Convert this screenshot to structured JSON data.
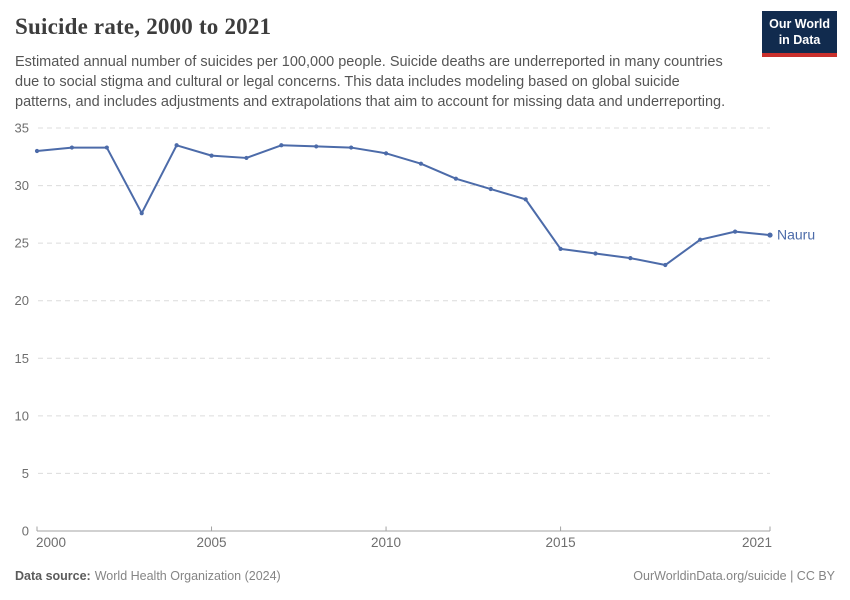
{
  "header": {
    "title": "Suicide rate, 2000 to 2021",
    "logo": {
      "line1": "Our World",
      "line2": "in Data"
    },
    "subtitle_lines": [
      "Estimated annual number of suicides per 100,000 people. Suicide deaths are underreported in many countries",
      "due to social stigma and cultural or legal concerns. This data includes modeling based on global suicide",
      "patterns, and includes adjustments and extrapolations that aim to account for missing data and underreporting."
    ]
  },
  "chart_data": {
    "type": "line",
    "title": "Suicide rate, 2000 to 2021",
    "xlabel": "",
    "ylabel": "",
    "x": [
      2000,
      2001,
      2002,
      2003,
      2004,
      2005,
      2006,
      2007,
      2008,
      2009,
      2010,
      2011,
      2012,
      2013,
      2014,
      2015,
      2016,
      2017,
      2018,
      2019,
      2020,
      2021
    ],
    "series": [
      {
        "name": "Nauru",
        "color": "#4c6ba9",
        "values": [
          33.0,
          33.3,
          33.3,
          27.6,
          33.5,
          32.6,
          32.4,
          33.5,
          33.4,
          33.3,
          32.8,
          31.9,
          30.6,
          29.7,
          28.8,
          24.5,
          24.1,
          23.7,
          23.1,
          25.3,
          26.0,
          25.7
        ]
      }
    ],
    "ylim": [
      0,
      35
    ],
    "yticks": [
      0,
      5,
      10,
      15,
      20,
      25,
      30,
      35
    ],
    "xticks": [
      2000,
      2005,
      2010,
      2015,
      2021
    ],
    "xtick_labels": [
      "2000",
      "2005",
      "2010",
      "2015",
      "2021"
    ],
    "grid": "horizontal-dashed",
    "legend_position": "end-of-line-label"
  },
  "footer": {
    "source_label": "Data source:",
    "source_text": "World Health Organization (2024)",
    "credit": "OurWorldinData.org/suicide | CC BY"
  },
  "colors": {
    "line": "#4c6ba9",
    "title_text": "#3d3d3d",
    "subtitle_text": "#555555",
    "axis_text": "#6e6e6e",
    "gridline": "#dcdcdc",
    "axis_line": "#a3a3a3",
    "footer_text": "#858585",
    "footer_label": "#5b5b5b",
    "logo_bg": "#112b4e",
    "logo_accent": "#c9302c",
    "background": "#ffffff"
  }
}
